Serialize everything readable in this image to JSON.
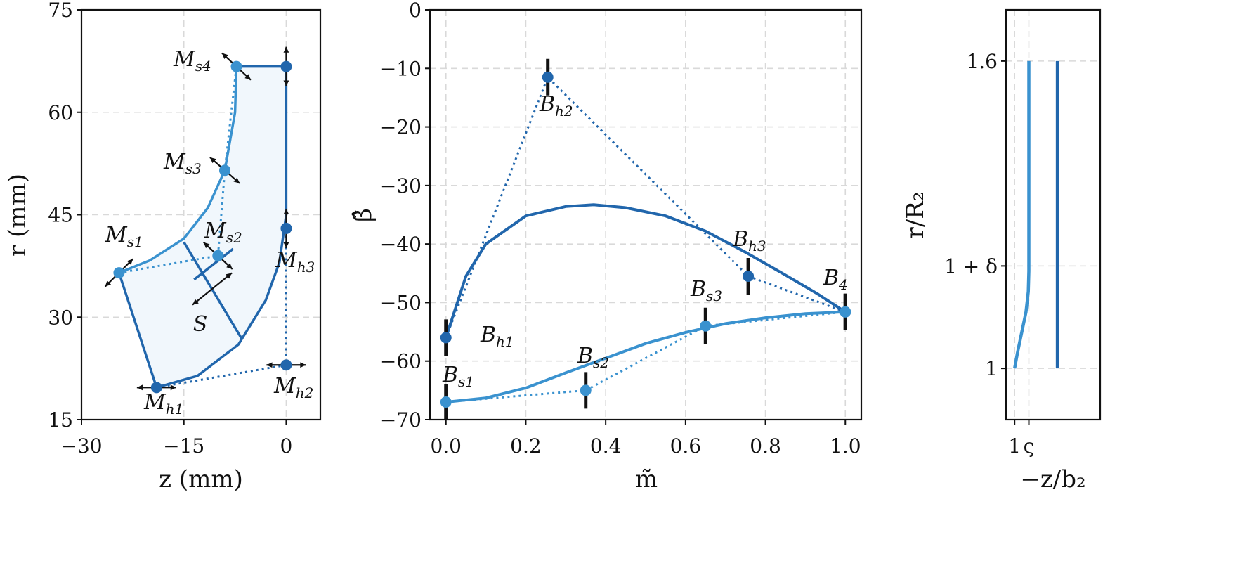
{
  "colors": {
    "dark": "#2166ac",
    "light": "#3a92cf",
    "fill": "#f1f7fc",
    "arrow": "#111111"
  },
  "chart_data": [
    {
      "type": "line",
      "xlabel": "z (mm)",
      "ylabel": "r (mm)",
      "xlim": [
        -30,
        5
      ],
      "ylim": [
        15,
        75
      ],
      "xticks": [
        -30,
        -15,
        0
      ],
      "yticks": [
        15,
        30,
        45,
        60,
        75
      ],
      "tick_labels_x": [
        "−30",
        "−15",
        "0"
      ],
      "tick_labels_y": [
        "15",
        "30",
        "45",
        "60",
        "75"
      ],
      "grid": true,
      "shroud_curve": [
        [
          -24.5,
          36.5
        ],
        [
          -20,
          38.3
        ],
        [
          -15,
          41.5
        ],
        [
          -11.5,
          46
        ],
        [
          -9,
          51.5
        ],
        [
          -7.5,
          60
        ],
        [
          -7.3,
          66.7
        ]
      ],
      "hub_curve": [
        [
          -19,
          19.7
        ],
        [
          -13,
          21.4
        ],
        [
          -7,
          26
        ],
        [
          -3,
          32.5
        ],
        [
          -1,
          38
        ],
        [
          0,
          45
        ],
        [
          0,
          66.7
        ]
      ],
      "inlet_line": [
        [
          -24.5,
          36.5
        ],
        [
          -19,
          19.7
        ]
      ],
      "outlet_line": [
        [
          -7.3,
          66.7
        ],
        [
          0,
          66.7
        ]
      ],
      "mid_lines": [
        [
          [
            -15,
            41
          ],
          [
            -6.5,
            26.8
          ]
        ],
        [
          [
            -13.5,
            35.5
          ],
          [
            -7.8,
            40
          ]
        ]
      ],
      "shroud_control_polygon": [
        [
          -24.5,
          36.5
        ],
        [
          -10,
          39
        ],
        [
          -9,
          51.5
        ],
        [
          -7.3,
          66.7
        ]
      ],
      "hub_control_polygon": [
        [
          -19,
          19.7
        ],
        [
          0,
          23
        ],
        [
          0,
          43
        ],
        [
          0,
          66.7
        ]
      ],
      "shroud_points": [
        {
          "name": "M",
          "sub": "s1",
          "z": -24.5,
          "r": 36.5
        },
        {
          "name": "M",
          "sub": "s2",
          "z": -10,
          "r": 39
        },
        {
          "name": "M",
          "sub": "s3",
          "z": -9,
          "r": 51.5
        },
        {
          "name": "M",
          "sub": "s4",
          "z": -7.3,
          "r": 66.7
        }
      ],
      "hub_points": [
        {
          "name": "M",
          "sub": "h1",
          "z": -19,
          "r": 19.7
        },
        {
          "name": "M",
          "sub": "h2",
          "z": 0,
          "r": 23
        },
        {
          "name": "M",
          "sub": "h3",
          "z": 0,
          "r": 43
        },
        {
          "name": "",
          "sub": "",
          "z": 0,
          "r": 66.7
        }
      ],
      "annotation_s": "S"
    },
    {
      "type": "line",
      "xlabel": "m̃",
      "ylabel": "β̂",
      "xlim": [
        -0.04,
        1.04
      ],
      "ylim": [
        -70,
        0
      ],
      "xticks": [
        0.0,
        0.2,
        0.4,
        0.6,
        0.8,
        1.0
      ],
      "yticks": [
        0,
        -10,
        -20,
        -30,
        -40,
        -50,
        -60,
        -70
      ],
      "tick_labels_x": [
        "0.0",
        "0.2",
        "0.4",
        "0.6",
        "0.8",
        "1.0"
      ],
      "tick_labels_y": [
        "0",
        "−10",
        "−20",
        "−30",
        "−40",
        "−50",
        "−60",
        "−70"
      ],
      "grid": true,
      "hub_curve": [
        [
          0,
          -56
        ],
        [
          0.05,
          -45.5
        ],
        [
          0.1,
          -40
        ],
        [
          0.2,
          -35.2
        ],
        [
          0.3,
          -33.6
        ],
        [
          0.37,
          -33.3
        ],
        [
          0.45,
          -33.8
        ],
        [
          0.55,
          -35.2
        ],
        [
          0.65,
          -37.8
        ],
        [
          0.75,
          -41.4
        ],
        [
          0.85,
          -45.3
        ],
        [
          0.93,
          -48.5
        ],
        [
          1.0,
          -51.6
        ]
      ],
      "shroud_curve": [
        [
          0,
          -67
        ],
        [
          0.1,
          -66.3
        ],
        [
          0.2,
          -64.6
        ],
        [
          0.3,
          -62
        ],
        [
          0.4,
          -59.5
        ],
        [
          0.5,
          -57
        ],
        [
          0.6,
          -55.1
        ],
        [
          0.7,
          -53.6
        ],
        [
          0.8,
          -52.6
        ],
        [
          0.9,
          -51.9
        ],
        [
          1.0,
          -51.6
        ]
      ],
      "hub_points": [
        {
          "name": "B",
          "sub": "h1",
          "x": 0.0,
          "y": -56
        },
        {
          "name": "B",
          "sub": "h2",
          "x": 0.255,
          "y": -11.5
        },
        {
          "name": "B",
          "sub": "h3",
          "x": 0.757,
          "y": -45.5
        },
        {
          "name": "B",
          "sub": "4",
          "x": 1.0,
          "y": -51.6
        }
      ],
      "shroud_points": [
        {
          "name": "B",
          "sub": "s1",
          "x": 0.0,
          "y": -67
        },
        {
          "name": "B",
          "sub": "s2",
          "x": 0.35,
          "y": -65
        },
        {
          "name": "B",
          "sub": "s3",
          "x": 0.65,
          "y": -54
        },
        {
          "name": "",
          "sub": "",
          "x": 1.0,
          "y": -51.6
        }
      ]
    },
    {
      "type": "line",
      "xlabel": "−z/b₂",
      "ylabel": "r/R₂",
      "xlim": [
        0.97,
        1.3
      ],
      "ylim": [
        0.9,
        1.7
      ],
      "yticks": [
        1.0,
        1.2,
        1.6
      ],
      "tick_labels_y": [
        "1",
        "1 + δ",
        "1.6"
      ],
      "xticks": [
        1.0,
        1.05
      ],
      "tick_labels_x": [
        "1",
        "ς"
      ],
      "grid": true,
      "shroud_line": [
        [
          1.0,
          1.0
        ],
        [
          1.01,
          1.03
        ],
        [
          1.025,
          1.07
        ],
        [
          1.04,
          1.11
        ],
        [
          1.048,
          1.15
        ],
        [
          1.05,
          1.19
        ],
        [
          1.05,
          1.6
        ]
      ],
      "hub_line": [
        [
          1.15,
          1.0
        ],
        [
          1.15,
          1.6
        ]
      ]
    }
  ]
}
